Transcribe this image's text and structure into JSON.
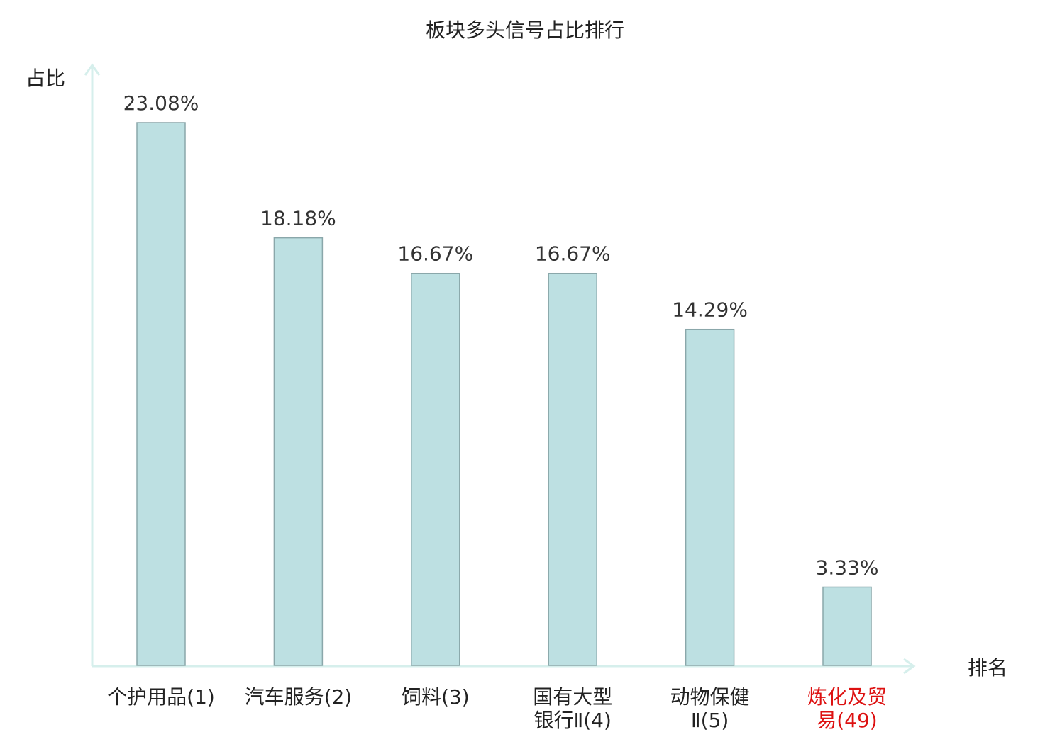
{
  "chart_data": {
    "type": "bar",
    "title": "板块多头信号占比排行",
    "ylabel": "占比",
    "xlabel": "排名",
    "categories": [
      [
        "个护用品(1)"
      ],
      [
        "汽车服务(2)"
      ],
      [
        "饲料(3)"
      ],
      [
        "国有大型",
        "银行Ⅱ(4)"
      ],
      [
        "动物保健",
        "Ⅱ(5)"
      ],
      [
        "炼化及贸",
        "易(49)"
      ]
    ],
    "values": [
      23.08,
      18.18,
      16.67,
      16.67,
      14.29,
      3.33
    ],
    "value_labels": [
      "23.08%",
      "18.18%",
      "16.67%",
      "16.67%",
      "14.29%",
      "3.33%"
    ],
    "highlight_index": 5,
    "ylim": [
      0,
      25.4
    ],
    "grid": false,
    "colors": {
      "bar_fill": "#bde0e2",
      "bar_stroke": "#8aa7aa",
      "axis": "#d6efec",
      "highlight_label": "#dd1111",
      "label": "#222222"
    }
  }
}
